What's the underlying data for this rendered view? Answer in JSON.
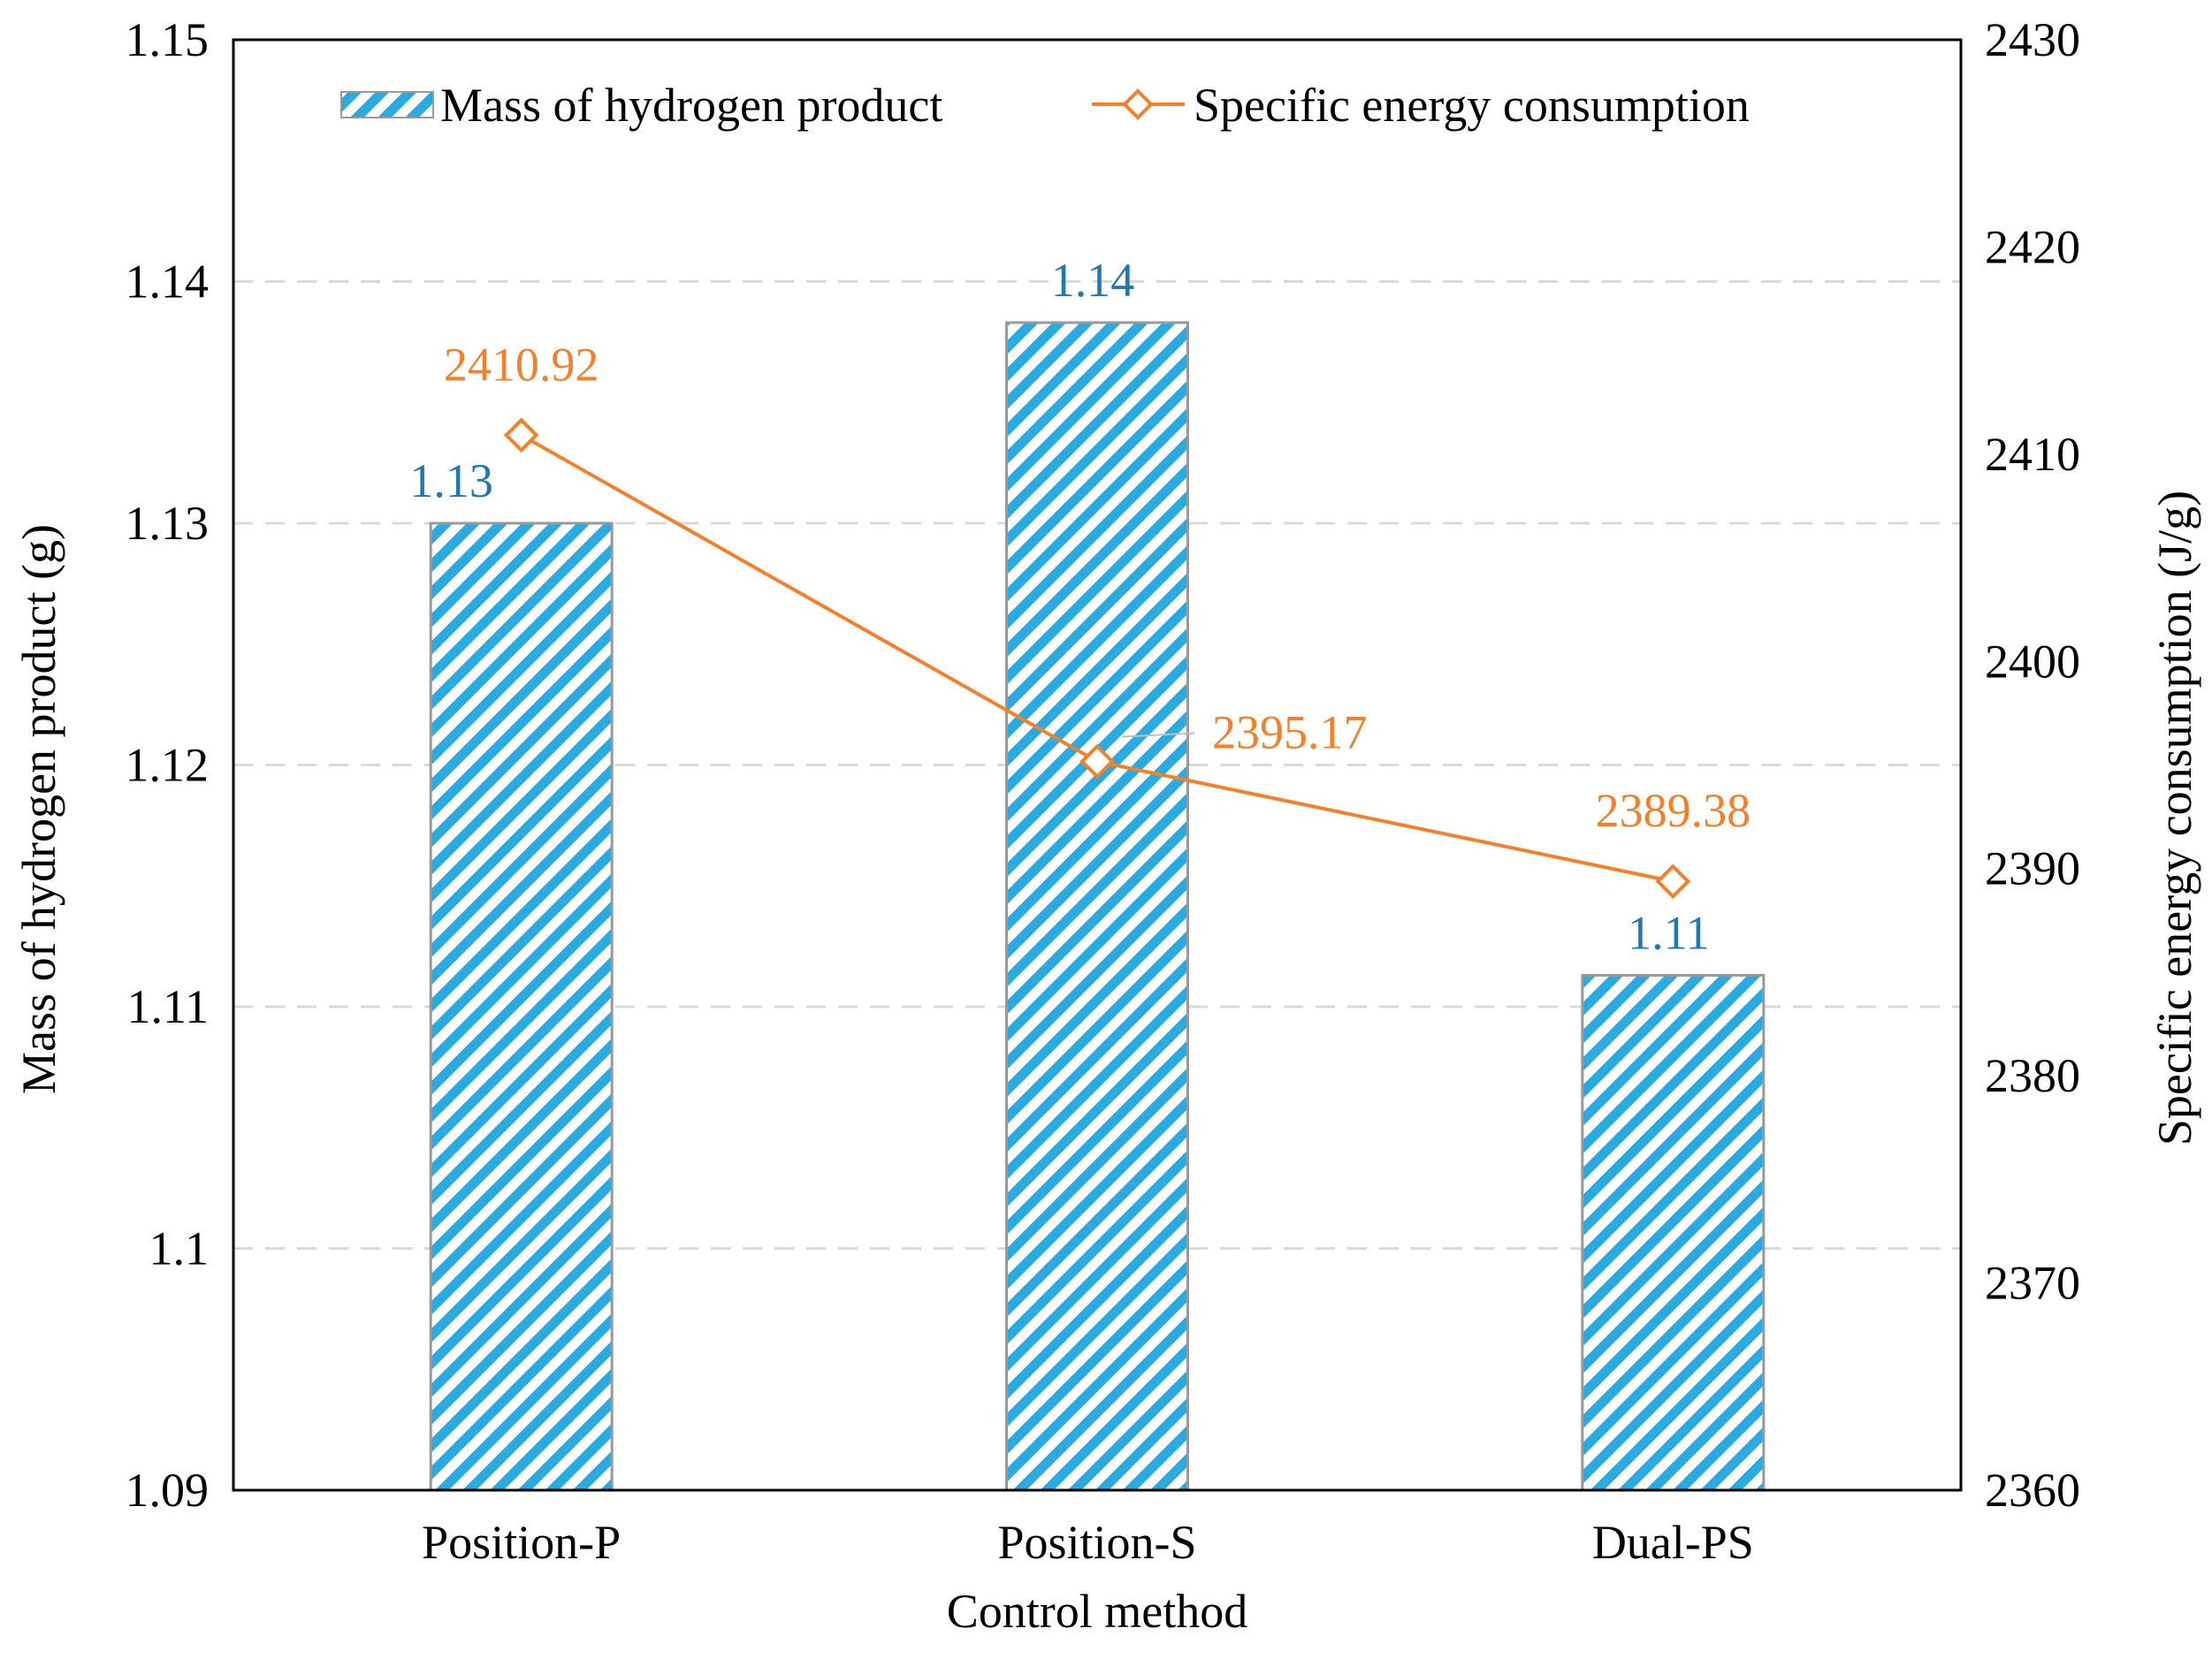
{
  "chart_data": {
    "type": "bar",
    "categories": [
      "Position-P",
      "Position-S",
      "Dual-PS"
    ],
    "xlabel": "Control method",
    "ylabel": "Mass of hydrogen product (g)",
    "y2label": "Specific energy consumption (J/g)",
    "ylim": [
      1.09,
      1.15
    ],
    "y2lim": [
      2360,
      2430
    ],
    "yticks": [
      1.09,
      1.1,
      1.11,
      1.12,
      1.13,
      1.14,
      1.15
    ],
    "ytick_labels": [
      "1.09",
      "1.1",
      "1.11",
      "1.12",
      "1.13",
      "1.14",
      "1.15"
    ],
    "y2ticks": [
      2360,
      2370,
      2380,
      2390,
      2400,
      2410,
      2420,
      2430
    ],
    "y2tick_labels": [
      "2360",
      "2370",
      "2380",
      "2390",
      "2400",
      "2410",
      "2420",
      "2430"
    ],
    "grid": true,
    "legend_position": "top",
    "series": [
      {
        "name": "Mass of hydrogen product",
        "kind": "bar",
        "axis": "left",
        "values": [
          1.13,
          1.1383,
          1.1113
        ],
        "labels": [
          "1.13",
          "1.14",
          "1.11"
        ],
        "color": "#29abe2",
        "label_color": "#1f77b4"
      },
      {
        "name": "Specific energy consumption",
        "kind": "line",
        "axis": "right",
        "values": [
          2410.92,
          2395.17,
          2389.38
        ],
        "labels": [
          "2410.92",
          "2395.17",
          "2389.38"
        ],
        "color": "#f5802a",
        "label_color": "#f5802a"
      }
    ]
  }
}
